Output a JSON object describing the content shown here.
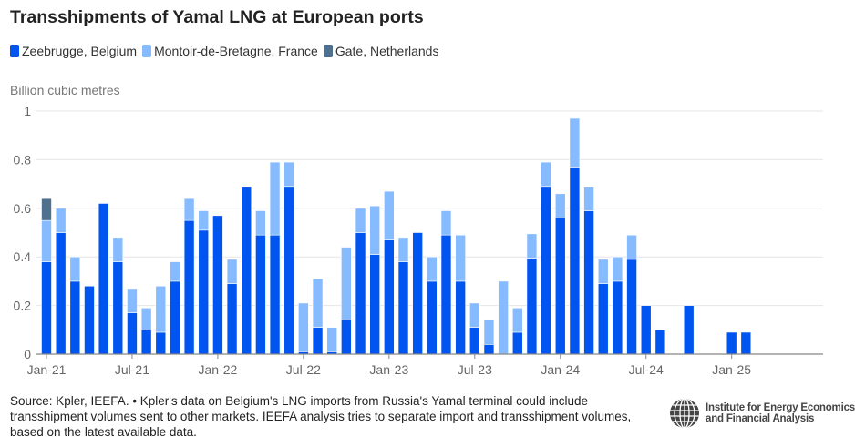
{
  "chart_data": {
    "type": "bar",
    "stacked": true,
    "title": "Transshipments of Yamal LNG at European ports",
    "ylabel": "Billion cubic metres",
    "xlabel": "",
    "ylim": [
      0,
      1
    ],
    "yticks": [
      "0",
      "0.2",
      "0.4",
      "0.6",
      "0.8",
      "1"
    ],
    "xticks": [
      "Jan-21",
      "Jul-21",
      "Jan-22",
      "Jul-22",
      "Jan-23",
      "Jul-23",
      "Jan-24",
      "Jul-24",
      "Jan-25"
    ],
    "grid": true,
    "legend_position": "top-left",
    "categories": [
      "Jan-21",
      "Feb-21",
      "Mar-21",
      "Apr-21",
      "May-21",
      "Jun-21",
      "Jul-21",
      "Aug-21",
      "Sep-21",
      "Oct-21",
      "Nov-21",
      "Dec-21",
      "Jan-22",
      "Feb-22",
      "Mar-22",
      "Apr-22",
      "May-22",
      "Jun-22",
      "Jul-22",
      "Aug-22",
      "Sep-22",
      "Oct-22",
      "Nov-22",
      "Dec-22",
      "Jan-23",
      "Feb-23",
      "Mar-23",
      "Apr-23",
      "May-23",
      "Jun-23",
      "Jul-23",
      "Aug-23",
      "Sep-23",
      "Oct-23",
      "Nov-23",
      "Dec-23",
      "Jan-24",
      "Feb-24",
      "Mar-24",
      "Apr-24",
      "May-24",
      "Jun-24",
      "Jul-24",
      "Aug-24",
      "Sep-24",
      "Oct-24",
      "Nov-24",
      "Dec-24",
      "Jan-25",
      "Feb-25",
      "Mar-25",
      "Apr-25",
      "May-25",
      "Jun-25",
      "Jul-25",
      "Aug-25"
    ],
    "series": [
      {
        "name": "Zeebrugge, Belgium",
        "color": "#0055f0",
        "values": [
          0.38,
          0.5,
          0.3,
          0.28,
          0.62,
          0.38,
          0.17,
          0.1,
          0.09,
          0.3,
          0.55,
          0.51,
          0.57,
          0.29,
          0.69,
          0.49,
          0.49,
          0.69,
          0.01,
          0.11,
          0.01,
          0.14,
          0.5,
          0.41,
          0.47,
          0.38,
          0.5,
          0.3,
          0.49,
          0.3,
          0.11,
          0.04,
          0,
          0.09,
          0.395,
          0.69,
          0.56,
          0.77,
          0.59,
          0.29,
          0.3,
          0.39,
          0.2,
          0.1,
          0,
          0.2,
          0,
          0,
          0.09,
          0.09,
          0,
          0,
          0,
          0,
          0,
          0
        ]
      },
      {
        "name": "Montoir-de-Bretagne, France",
        "color": "#86bbff",
        "values": [
          0.17,
          0.1,
          0.1,
          0,
          0,
          0.1,
          0.1,
          0.09,
          0.19,
          0.08,
          0.09,
          0.08,
          0,
          0.1,
          0,
          0.1,
          0.3,
          0.1,
          0.2,
          0.2,
          0.1,
          0.3,
          0.1,
          0.2,
          0.2,
          0.1,
          0,
          0.1,
          0.1,
          0.19,
          0.1,
          0.1,
          0.3,
          0.1,
          0.1,
          0.1,
          0.1,
          0.2,
          0.1,
          0.1,
          0.1,
          0.1,
          0,
          0,
          0,
          0,
          0,
          0,
          0,
          0,
          0,
          0,
          0,
          0,
          0,
          0
        ]
      },
      {
        "name": "Gate, Netherlands",
        "color": "#4f718f",
        "values": [
          0.09,
          0,
          0,
          0,
          0,
          0,
          0,
          0,
          0,
          0,
          0,
          0,
          0,
          0,
          0,
          0,
          0,
          0,
          0,
          0,
          0,
          0,
          0,
          0,
          0,
          0,
          0,
          0,
          0,
          0,
          0,
          0,
          0,
          0,
          0,
          0,
          0,
          0,
          0,
          0,
          0,
          0,
          0,
          0,
          0,
          0,
          0,
          0,
          0,
          0,
          0,
          0,
          0,
          0,
          0,
          0
        ]
      }
    ]
  },
  "footer": {
    "source": "Source: Kpler, IEEFA. • Kpler's data on Belgium's LNG imports from Russia's Yamal terminal could include transshipment volumes sent to other markets. IEEFA analysis tries to separate import and transshipment volumes, based on the latest available data."
  },
  "logo": {
    "line1": "Institute for Energy Economics",
    "line2": "and Financial Analysis"
  }
}
